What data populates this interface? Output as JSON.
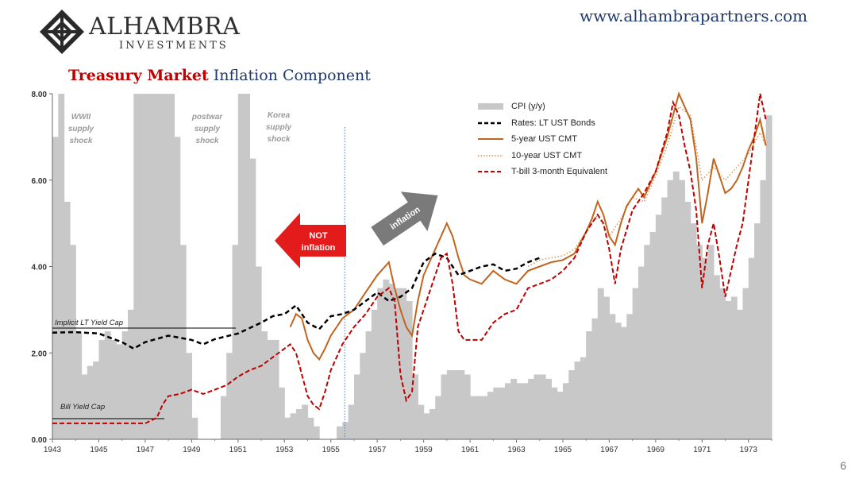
{
  "header": {
    "brand_name": "ALHAMBRA",
    "brand_sub": "INVESTMENTS",
    "website": "www.alhambrapartners.com",
    "title_part1": "Treasury Market",
    "title_part2": "Inflation Component",
    "page_number": "6"
  },
  "colors": {
    "cpi": "#c8c8c8",
    "lt_bonds": "#000000",
    "five_year": "#c0651f",
    "ten_year": "#e08a40",
    "tbill": "#c00000",
    "navy": "#1f3a6e"
  },
  "chart_data": {
    "type": "line",
    "xlim": [
      1943,
      1974
    ],
    "ylim": [
      0,
      8
    ],
    "x_tick_labels": [
      "1943",
      "1945",
      "1947",
      "1949",
      "1951",
      "1953",
      "1955",
      "1957",
      "1959",
      "1961",
      "1963",
      "1965",
      "1967",
      "1969",
      "1971",
      "1973"
    ],
    "y_tick_labels": [
      "0.00",
      "2.00",
      "4.00",
      "6.00",
      "8.00"
    ],
    "legend": [
      "CPI (y/y)",
      "Rates: LT UST Bonds",
      "5-year UST CMT",
      "10-year UST CMT",
      "T-bill 3-month Equivalent"
    ],
    "annotations": {
      "wwii": "WWII\nsupply\nshock",
      "postwar": "postwar\nsupply\nshock",
      "korea": "Korea\nsupply\nshock",
      "not_inflation": "NOT\ninflation",
      "inflation": "inflation",
      "lt_cap": "Implicit LT Yield Cap",
      "bill_cap": "Bill Yield Cap"
    },
    "series": [
      {
        "name": "CPI (y/y)",
        "style": "bars",
        "x": [
          1943,
          1943.25,
          1943.5,
          1943.75,
          1944,
          1944.25,
          1944.5,
          1944.75,
          1945,
          1945.25,
          1945.5,
          1945.75,
          1946,
          1946.25,
          1946.5,
          1946.75,
          1947,
          1947.25,
          1947.5,
          1947.75,
          1948,
          1948.25,
          1948.5,
          1948.75,
          1949,
          1949.25,
          1949.5,
          1949.75,
          1950,
          1950.25,
          1950.5,
          1950.75,
          1951,
          1951.25,
          1951.5,
          1951.75,
          1952,
          1952.25,
          1952.5,
          1952.75,
          1953,
          1953.25,
          1953.5,
          1953.75,
          1954,
          1954.25,
          1954.5,
          1954.75,
          1955,
          1955.25,
          1955.5,
          1955.75,
          1956,
          1956.25,
          1956.5,
          1956.75,
          1957,
          1957.25,
          1957.5,
          1957.75,
          1958,
          1958.25,
          1958.5,
          1958.75,
          1959,
          1959.25,
          1959.5,
          1959.75,
          1960,
          1960.25,
          1960.5,
          1960.75,
          1961,
          1961.25,
          1961.5,
          1961.75,
          1962,
          1962.25,
          1962.5,
          1962.75,
          1963,
          1963.25,
          1963.5,
          1963.75,
          1964,
          1964.25,
          1964.5,
          1964.75,
          1965,
          1965.25,
          1965.5,
          1965.75,
          1966,
          1966.25,
          1966.5,
          1966.75,
          1967,
          1967.25,
          1967.5,
          1967.75,
          1968,
          1968.25,
          1968.5,
          1968.75,
          1969,
          1969.25,
          1969.5,
          1969.75,
          1970,
          1970.25,
          1970.5,
          1970.75,
          1971,
          1971.25,
          1971.5,
          1971.75,
          1972,
          1972.25,
          1972.5,
          1972.75,
          1973,
          1973.25,
          1973.5,
          1973.75
        ],
        "values": [
          7.0,
          8.0,
          5.5,
          4.5,
          2.5,
          1.5,
          1.7,
          1.8,
          2.3,
          2.5,
          2.3,
          2.2,
          2.5,
          3.0,
          8.0,
          8.0,
          8.0,
          8.0,
          8.0,
          8.0,
          8.0,
          7.0,
          4.5,
          2.0,
          0.5,
          0.0,
          0.0,
          0.0,
          0.0,
          1.0,
          2.0,
          4.5,
          8.0,
          8.0,
          6.5,
          4.0,
          2.5,
          2.3,
          2.3,
          1.2,
          0.5,
          0.6,
          0.7,
          0.8,
          0.5,
          0.3,
          0.0,
          0.0,
          0.0,
          0.3,
          0.4,
          0.8,
          1.5,
          2.0,
          2.5,
          3.0,
          3.5,
          3.7,
          3.6,
          3.5,
          3.5,
          3.2,
          1.5,
          0.8,
          0.6,
          0.7,
          1.0,
          1.5,
          1.6,
          1.6,
          1.6,
          1.5,
          1.0,
          1.0,
          1.0,
          1.1,
          1.2,
          1.2,
          1.3,
          1.4,
          1.3,
          1.3,
          1.4,
          1.5,
          1.5,
          1.4,
          1.2,
          1.1,
          1.3,
          1.6,
          1.8,
          1.9,
          2.5,
          2.8,
          3.5,
          3.3,
          2.9,
          2.7,
          2.6,
          2.9,
          3.5,
          4.0,
          4.5,
          4.8,
          5.2,
          5.6,
          6.0,
          6.2,
          6.0,
          5.5,
          5.0,
          4.5,
          4.2,
          4.5,
          3.8,
          3.5,
          3.2,
          3.3,
          3.0,
          3.5,
          4.2,
          5.0,
          6.0,
          7.5
        ]
      },
      {
        "name": "Rates: LT UST Bonds",
        "style": "dashed",
        "x": [
          1943,
          1944,
          1945,
          1946,
          1946.5,
          1947,
          1948,
          1949,
          1949.5,
          1950,
          1951,
          1952,
          1952.5,
          1953,
          1953.25,
          1953.5,
          1954,
          1954.5,
          1955,
          1955.5,
          1956,
          1956.5,
          1957,
          1957.5,
          1958,
          1958.5,
          1959,
          1959.5,
          1960,
          1960.5,
          1961,
          1961.5,
          1962,
          1962.5,
          1963,
          1963.5,
          1964
        ],
        "values": [
          2.47,
          2.48,
          2.45,
          2.25,
          2.1,
          2.25,
          2.4,
          2.3,
          2.2,
          2.32,
          2.45,
          2.7,
          2.85,
          2.9,
          3.0,
          3.1,
          2.7,
          2.55,
          2.85,
          2.9,
          3.0,
          3.2,
          3.4,
          3.2,
          3.3,
          3.5,
          4.1,
          4.3,
          4.2,
          3.8,
          3.9,
          4.0,
          4.05,
          3.9,
          3.95,
          4.1,
          4.2
        ]
      },
      {
        "name": "5-year UST CMT",
        "style": "solid",
        "x": [
          1953.25,
          1953.5,
          1953.75,
          1954,
          1954.25,
          1954.5,
          1954.75,
          1955,
          1955.5,
          1956,
          1956.5,
          1957,
          1957.5,
          1957.75,
          1958,
          1958.25,
          1958.5,
          1958.75,
          1959,
          1959.5,
          1960,
          1960.25,
          1960.5,
          1960.75,
          1961,
          1961.5,
          1962,
          1962.5,
          1963,
          1963.5,
          1964,
          1964.5,
          1965,
          1965.5,
          1966,
          1966.25,
          1966.5,
          1966.75,
          1967,
          1967.25,
          1967.5,
          1967.75,
          1968,
          1968.25,
          1968.5,
          1968.75,
          1969,
          1969.25,
          1969.5,
          1969.75,
          1970,
          1970.25,
          1970.5,
          1970.75,
          1971,
          1971.25,
          1971.5,
          1971.75,
          1972,
          1972.25,
          1972.5,
          1972.75,
          1973,
          1973.25,
          1973.5,
          1973.75
        ],
        "values": [
          2.6,
          2.9,
          2.8,
          2.3,
          2.0,
          1.85,
          2.1,
          2.4,
          2.8,
          3.0,
          3.4,
          3.8,
          4.1,
          3.5,
          3.0,
          2.6,
          2.4,
          3.2,
          3.8,
          4.4,
          5.0,
          4.7,
          4.2,
          3.8,
          3.7,
          3.6,
          3.9,
          3.7,
          3.6,
          3.9,
          4.0,
          4.1,
          4.15,
          4.3,
          4.8,
          5.1,
          5.5,
          5.2,
          4.7,
          4.5,
          5.0,
          5.4,
          5.6,
          5.8,
          5.6,
          5.9,
          6.2,
          6.6,
          7.0,
          7.5,
          8.0,
          7.7,
          7.4,
          6.5,
          5.0,
          5.7,
          6.5,
          6.1,
          5.7,
          5.8,
          6.0,
          6.3,
          6.7,
          7.0,
          7.4,
          6.8
        ]
      },
      {
        "name": "10-year UST CMT",
        "style": "dotted",
        "x": [
          1963.5,
          1964,
          1964.5,
          1965,
          1965.5,
          1966,
          1966.5,
          1967,
          1967.5,
          1968,
          1968.5,
          1969,
          1969.5,
          1970,
          1970.5,
          1971,
          1971.5,
          1972,
          1972.5,
          1973,
          1973.5,
          1973.75
        ],
        "values": [
          4.0,
          4.15,
          4.2,
          4.25,
          4.4,
          4.8,
          5.2,
          4.7,
          5.1,
          5.6,
          5.5,
          6.1,
          6.8,
          7.7,
          7.5,
          6.0,
          6.3,
          6.0,
          6.3,
          6.6,
          7.1,
          6.8
        ]
      },
      {
        "name": "T-bill 3-month Equivalent",
        "style": "dashed",
        "x": [
          1943,
          1944,
          1945,
          1946,
          1947,
          1947.5,
          1947.75,
          1948,
          1948.5,
          1949,
          1949.5,
          1950,
          1950.5,
          1951,
          1951.5,
          1952,
          1952.5,
          1953,
          1953.25,
          1953.5,
          1953.75,
          1954,
          1954.25,
          1954.5,
          1954.75,
          1955,
          1955.5,
          1956,
          1956.5,
          1957,
          1957.5,
          1957.75,
          1958,
          1958.25,
          1958.5,
          1958.75,
          1959,
          1959.5,
          1959.75,
          1960,
          1960.25,
          1960.5,
          1960.75,
          1961,
          1961.5,
          1962,
          1962.5,
          1963,
          1963.5,
          1964,
          1964.5,
          1965,
          1965.5,
          1966,
          1966.5,
          1966.75,
          1967,
          1967.25,
          1967.5,
          1968,
          1968.5,
          1969,
          1969.5,
          1969.75,
          1970,
          1970.25,
          1970.5,
          1970.75,
          1971,
          1971.25,
          1971.5,
          1971.75,
          1972,
          1972.25,
          1972.5,
          1972.75,
          1973,
          1973.25,
          1973.5,
          1973.75
        ],
        "values": [
          0.37,
          0.37,
          0.37,
          0.37,
          0.37,
          0.5,
          0.8,
          1.0,
          1.05,
          1.15,
          1.05,
          1.15,
          1.25,
          1.45,
          1.6,
          1.7,
          1.9,
          2.1,
          2.2,
          2.0,
          1.5,
          1.0,
          0.8,
          0.7,
          1.1,
          1.6,
          2.2,
          2.6,
          2.9,
          3.3,
          3.5,
          3.2,
          1.5,
          0.9,
          1.1,
          2.6,
          3.0,
          3.8,
          4.2,
          4.3,
          3.6,
          2.5,
          2.3,
          2.3,
          2.3,
          2.7,
          2.9,
          3.0,
          3.5,
          3.6,
          3.7,
          3.9,
          4.2,
          4.8,
          5.2,
          5.0,
          4.4,
          3.6,
          4.4,
          5.3,
          5.7,
          6.2,
          7.1,
          7.8,
          7.5,
          6.8,
          6.2,
          5.3,
          3.5,
          4.5,
          5.0,
          4.2,
          3.3,
          3.9,
          4.5,
          5.0,
          6.0,
          7.0,
          8.0,
          7.4
        ]
      }
    ]
  }
}
